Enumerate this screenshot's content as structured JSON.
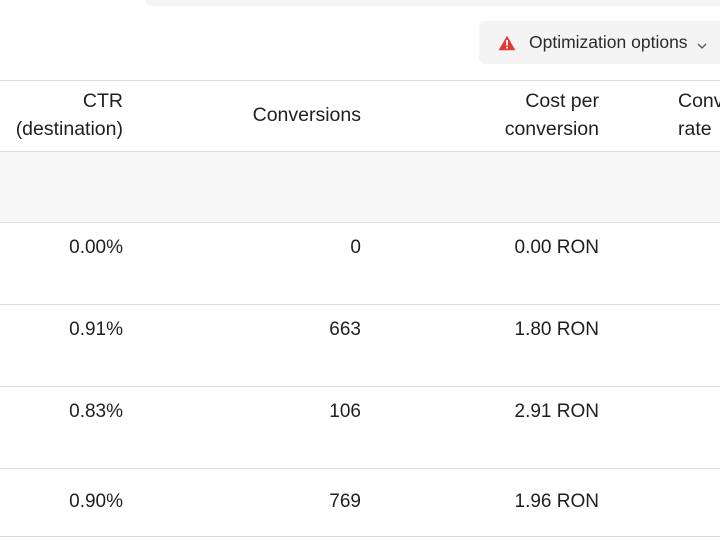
{
  "toolbar": {
    "optimization_label": "Optimization options",
    "warning_color": "#e53935"
  },
  "table": {
    "columns": [
      {
        "line1": "CTR",
        "line2": "(destination)"
      },
      {
        "line1": "Conversions",
        "line2": ""
      },
      {
        "line1": "Cost per",
        "line2": "conversion"
      },
      {
        "line1": "Conv",
        "line2": "rate"
      }
    ],
    "rows": [
      {
        "ctr": "0.00%",
        "conversions": "0",
        "cost": "0.00 RON"
      },
      {
        "ctr": "0.91%",
        "conversions": "663",
        "cost": "1.80 RON"
      },
      {
        "ctr": "0.83%",
        "conversions": "106",
        "cost": "2.91 RON"
      },
      {
        "ctr": "0.90%",
        "conversions": "769",
        "cost": "1.96 RON"
      }
    ]
  }
}
